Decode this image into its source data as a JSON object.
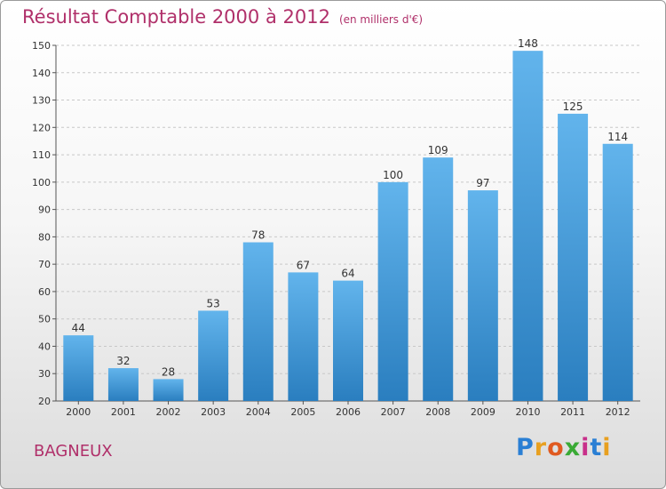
{
  "header": {
    "title": "Résultat Comptable 2000 à 2012",
    "unit": "(en milliers d'€)"
  },
  "footer": {
    "place": "BAGNEUX",
    "logo_letters": [
      {
        "ch": "P",
        "color": "#2a7fd4"
      },
      {
        "ch": "r",
        "color": "#e8a020"
      },
      {
        "ch": "o",
        "color": "#e05a20"
      },
      {
        "ch": "x",
        "color": "#3aaa35"
      },
      {
        "ch": "i",
        "color": "#c8308a"
      },
      {
        "ch": "t",
        "color": "#2a7fd4"
      },
      {
        "ch": "i",
        "color": "#e8a020"
      }
    ]
  },
  "colors": {
    "bar_light": "#62b4ec",
    "bar_dark": "#2a7ebf",
    "title": "#b0306a"
  },
  "chart_data": {
    "type": "bar",
    "categories": [
      "2000",
      "2001",
      "2002",
      "2003",
      "2004",
      "2005",
      "2006",
      "2007",
      "2008",
      "2009",
      "2010",
      "2011",
      "2012"
    ],
    "values": [
      44,
      32,
      28,
      53,
      78,
      67,
      64,
      100,
      109,
      97,
      148,
      125,
      114
    ],
    "title": "Résultat Comptable 2000 à 2012",
    "ylim": [
      20,
      150
    ],
    "yticks": [
      20,
      30,
      40,
      50,
      60,
      70,
      80,
      90,
      100,
      110,
      120,
      130,
      140,
      150
    ],
    "grid": true,
    "legend": "none"
  }
}
